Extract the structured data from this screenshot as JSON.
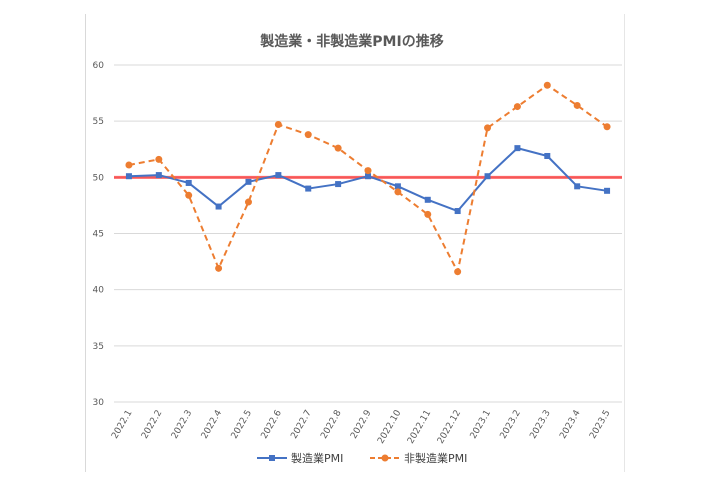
{
  "chart_data": {
    "type": "line",
    "title": "製造業・非製造業PMIの推移",
    "categories": [
      "2022.1",
      "2022.2",
      "2022.3",
      "2022.4",
      "2022.5",
      "2022.6",
      "2022.7",
      "2022.8",
      "2022.9",
      "2022.10",
      "2022.11",
      "2022.12",
      "2023.1",
      "2023.2",
      "2023.3",
      "2023.4",
      "2023.5"
    ],
    "series": [
      {
        "name": "製造業PMI",
        "color": "#4472c4",
        "style": "solid",
        "marker": "square",
        "values": [
          50.1,
          50.2,
          49.5,
          47.4,
          49.6,
          50.2,
          49.0,
          49.4,
          50.1,
          49.2,
          48.0,
          47.0,
          50.1,
          52.6,
          51.9,
          49.2,
          48.8
        ]
      },
      {
        "name": "非製造業PMI",
        "color": "#ed7d31",
        "style": "dashed",
        "marker": "circle",
        "values": [
          51.1,
          51.6,
          48.4,
          41.9,
          47.8,
          54.7,
          53.8,
          52.6,
          50.6,
          48.7,
          46.7,
          41.6,
          54.4,
          56.3,
          58.2,
          56.4,
          54.5
        ]
      }
    ],
    "reference_line": {
      "value": 50,
      "color": "#ff0000"
    },
    "ylim": [
      30,
      60
    ],
    "yticks": [
      30,
      35,
      40,
      45,
      50,
      55,
      60
    ],
    "grid": "horizontal",
    "legend": "bottom"
  }
}
